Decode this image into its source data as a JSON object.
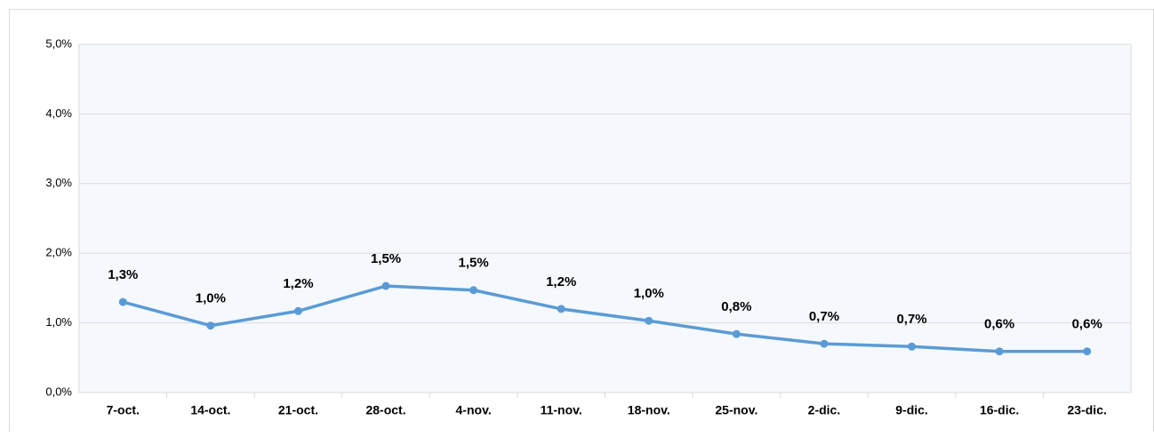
{
  "chart_data": {
    "type": "line",
    "categories": [
      "7-oct.",
      "14-oct.",
      "21-oct.",
      "28-oct.",
      "4-nov.",
      "11-nov.",
      "18-nov.",
      "25-nov.",
      "2-dic.",
      "9-dic.",
      "16-dic.",
      "23-dic."
    ],
    "series": [
      {
        "color": "#5b9bd5",
        "values": [
          1.3,
          0.96,
          1.17,
          1.53,
          1.47,
          1.2,
          1.03,
          0.84,
          0.7,
          0.66,
          0.59,
          0.59
        ],
        "value_labels": [
          "1,3%",
          "1,0%",
          "1,2%",
          "1,5%",
          "1,5%",
          "1,2%",
          "1,0%",
          "0,8%",
          "0,7%",
          "0,7%",
          "0,6%",
          "0,6%"
        ]
      }
    ],
    "ylim": [
      0,
      5
    ],
    "yticks": [
      {
        "value": 0,
        "label": "0,0%"
      },
      {
        "value": 1,
        "label": "1,0%"
      },
      {
        "value": 2,
        "label": "2,0%"
      },
      {
        "value": 3,
        "label": "3,0%"
      },
      {
        "value": 4,
        "label": "4,0%"
      },
      {
        "value": 5,
        "label": "5,0%"
      }
    ],
    "grid": true
  }
}
